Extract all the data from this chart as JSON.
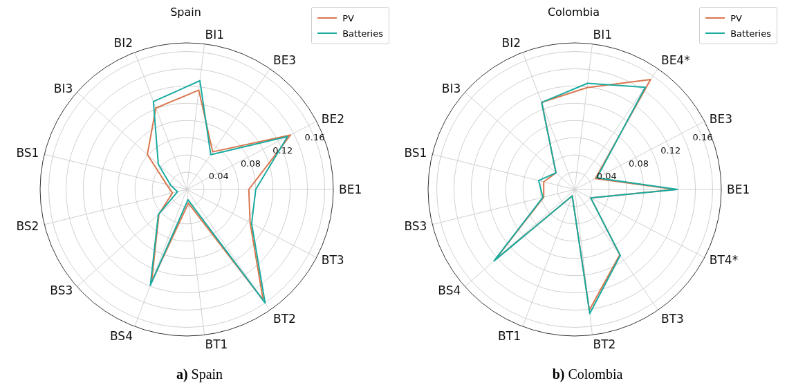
{
  "chart_data": [
    {
      "type": "radar",
      "title": "Spain",
      "annotations": [
        "a) Spain"
      ],
      "categories": [
        "BI1",
        "BE3",
        "BE2",
        "BE1",
        "BT3",
        "BT2",
        "BT1",
        "BS4",
        "BS3",
        "BS2",
        "BS1",
        "BI3",
        "BI2"
      ],
      "series": [
        {
          "name": "PV",
          "color": "#d9764e",
          "values": [
            0.116,
            0.053,
            0.136,
            0.072,
            0.083,
            0.156,
            0.016,
            0.115,
            0.043,
            0.017,
            0.024,
            0.061,
            0.101
          ]
        },
        {
          "name": "Batteries",
          "color": "#1aaba0",
          "values": [
            0.127,
            0.049,
            0.132,
            0.08,
            0.085,
            0.16,
            0.012,
            0.119,
            0.044,
            0.011,
            0.019,
            0.044,
            0.109
          ]
        }
      ],
      "ylim": [
        0,
        0.17
      ],
      "yticks": [
        0.04,
        0.08,
        0.12,
        0.16
      ],
      "grid": true,
      "legend": "top right"
    },
    {
      "type": "radar",
      "title": "Colombia",
      "annotations": [
        "b) Colombia"
      ],
      "categories": [
        "BI1",
        "BE4*",
        "BE3",
        "BE1",
        "BT4*",
        "BT3",
        "BT2",
        "BT1",
        "BS4",
        "BS3",
        "BS1",
        "BI3",
        "BI2"
      ],
      "series": [
        {
          "name": "PV",
          "color": "#d9764e",
          "values": [
            0.119,
            0.155,
            0.027,
            0.117,
            0.021,
            0.092,
            0.141,
            0.008,
            0.124,
            0.037,
            0.037,
            0.029,
            0.108
          ]
        },
        {
          "name": "Batteries",
          "color": "#1aaba0",
          "values": [
            0.124,
            0.144,
            0.029,
            0.119,
            0.021,
            0.093,
            0.145,
            0.008,
            0.125,
            0.038,
            0.043,
            0.029,
            0.108
          ]
        }
      ],
      "ylim": [
        0,
        0.17
      ],
      "yticks": [
        0.04,
        0.08,
        0.12,
        0.16
      ],
      "grid": true,
      "legend": "top right"
    }
  ]
}
